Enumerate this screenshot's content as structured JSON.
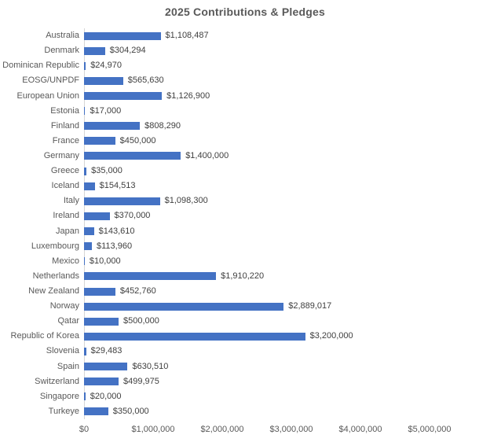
{
  "chart_data": {
    "type": "bar",
    "orientation": "horizontal",
    "title": "2025 Contributions & Pledges",
    "xlabel": "",
    "ylabel": "",
    "categories": [
      "Australia",
      "Denmark",
      "Dominican Republic",
      "EOSG/UNPDF",
      "European Union",
      "Estonia",
      "Finland",
      "France",
      "Germany",
      "Greece",
      "Iceland",
      "Italy",
      "Ireland",
      "Japan",
      "Luxembourg",
      "Mexico",
      "Netherlands",
      "New Zealand",
      "Norway",
      "Qatar",
      "Republic of Korea",
      "Slovenia",
      "Spain",
      "Switzerland",
      "Singapore",
      "Turkeye"
    ],
    "values": [
      1108487,
      304294,
      24970,
      565630,
      1126900,
      17000,
      808290,
      450000,
      1400000,
      35000,
      154513,
      1098300,
      370000,
      143610,
      113960,
      10000,
      1910220,
      452760,
      2889017,
      500000,
      3200000,
      29483,
      630510,
      499975,
      20000,
      350000
    ],
    "data_labels": [
      "$1,108,487",
      "$304,294",
      "$24,970",
      "$565,630",
      "$1,126,900",
      "$17,000",
      "$808,290",
      "$450,000",
      "$1,400,000",
      "$35,000",
      "$154,513",
      "$1,098,300",
      "$370,000",
      "$143,610",
      "$113,960",
      "$10,000",
      "$1,910,220",
      "$452,760",
      "$2,889,017",
      "$500,000",
      "$3,200,000",
      "$29,483",
      "$630,510",
      "$499,975",
      "$20,000",
      "$350,000"
    ],
    "xlim": [
      0,
      5000000
    ],
    "x_tick_values": [
      0,
      1000000,
      2000000,
      3000000,
      4000000,
      5000000
    ],
    "x_tick_labels": [
      "$0",
      "$1,000,000",
      "$2,000,000",
      "$3,000,000",
      "$4,000,000",
      "$5,000,000"
    ],
    "grid": false,
    "legend": false,
    "colors": {
      "bar": "#4472C4",
      "title": "#595959",
      "axis_line": "#D6D6D6",
      "category_label": "#595959",
      "value_label": "#404040",
      "tick_label": "#595959"
    }
  }
}
